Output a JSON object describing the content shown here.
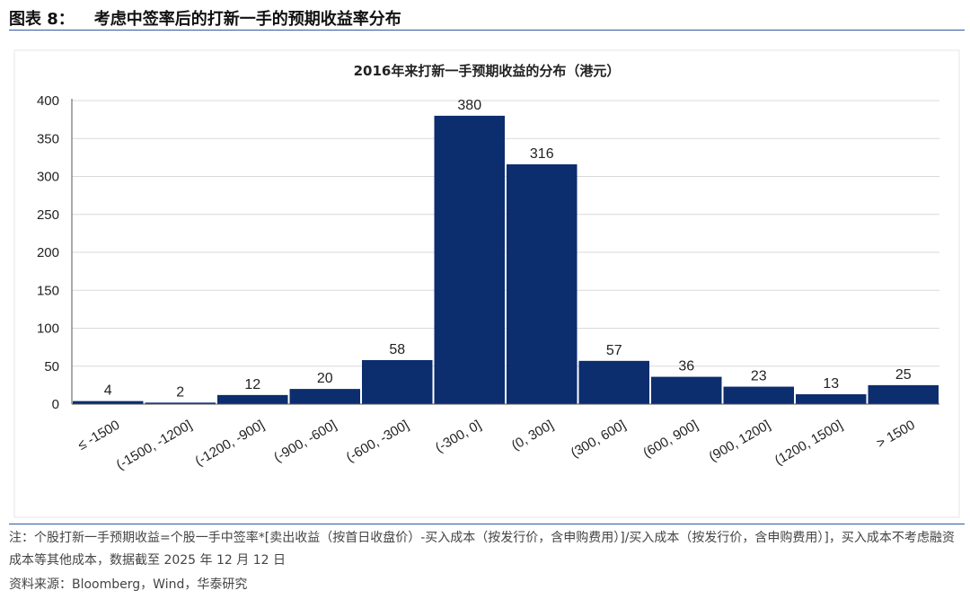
{
  "header": {
    "figure_label": "图表 8：",
    "figure_title": "考虑中签率后的打新一手的预期收益率分布"
  },
  "footer": {
    "note": "注：个股打新一手预期收益=个股一手中签率*[卖出收益（按首日收盘价）-买入成本（按发行价，含申购费用）]/买入成本（按发行价，含申购费用）]，买入成本不考虑融资成本等其他成本，数据截至 2025 年 12 月 12 日",
    "source": "资料来源：Bloomberg，Wind，华泰研究"
  },
  "colors": {
    "bar": "#0c2d6e",
    "gridline": "#d9d9d9",
    "axis": "#555555",
    "rule": "#2e5a9e"
  },
  "chart_data": {
    "type": "bar",
    "title": "2016年来打新一手预期收益的分布（港元）",
    "xlabel": "",
    "ylabel": "",
    "categories": [
      "≤ -1500",
      "(-1500, -1200]",
      "(-1200, -900]",
      "(-900, -600]",
      "(-600, -300]",
      "(-300, 0]",
      "(0, 300]",
      "(300, 600]",
      "(600, 900]",
      "(900, 1200]",
      "(1200, 1500]",
      "> 1500"
    ],
    "values": [
      4,
      2,
      12,
      20,
      58,
      380,
      316,
      57,
      36,
      23,
      13,
      25
    ],
    "ylim": [
      0,
      400
    ],
    "yticks": [
      0,
      50,
      100,
      150,
      200,
      250,
      300,
      350,
      400
    ],
    "grid": true,
    "legend": "none"
  }
}
